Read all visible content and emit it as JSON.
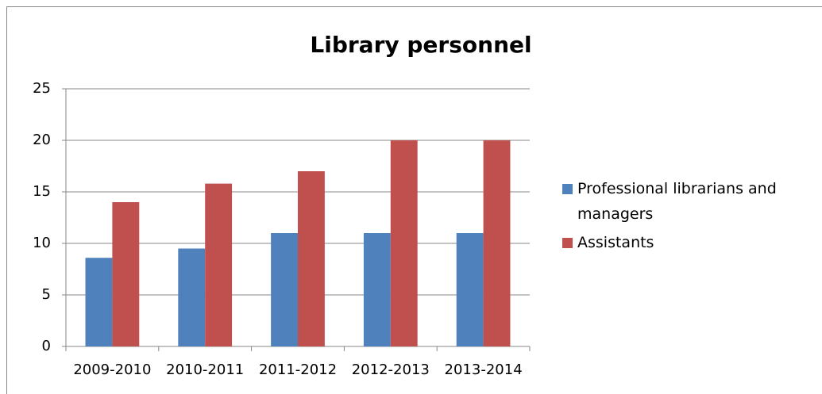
{
  "chart_data": {
    "type": "bar",
    "title": "Library personnel",
    "categories": [
      "2009-2010",
      "2010-2011",
      "2011-2012",
      "2012-2013",
      "2013-2014"
    ],
    "series": [
      {
        "name": "Professional librarians and managers",
        "color": "#4f81bd",
        "values": [
          8.6,
          9.5,
          11,
          11,
          11
        ]
      },
      {
        "name": "Assistants",
        "color": "#c0504d",
        "values": [
          14,
          15.8,
          17,
          20,
          20
        ]
      }
    ],
    "ylim": [
      0,
      25
    ],
    "yticks": [
      0,
      5,
      10,
      15,
      20,
      25
    ],
    "grid": true,
    "legend": "right"
  }
}
